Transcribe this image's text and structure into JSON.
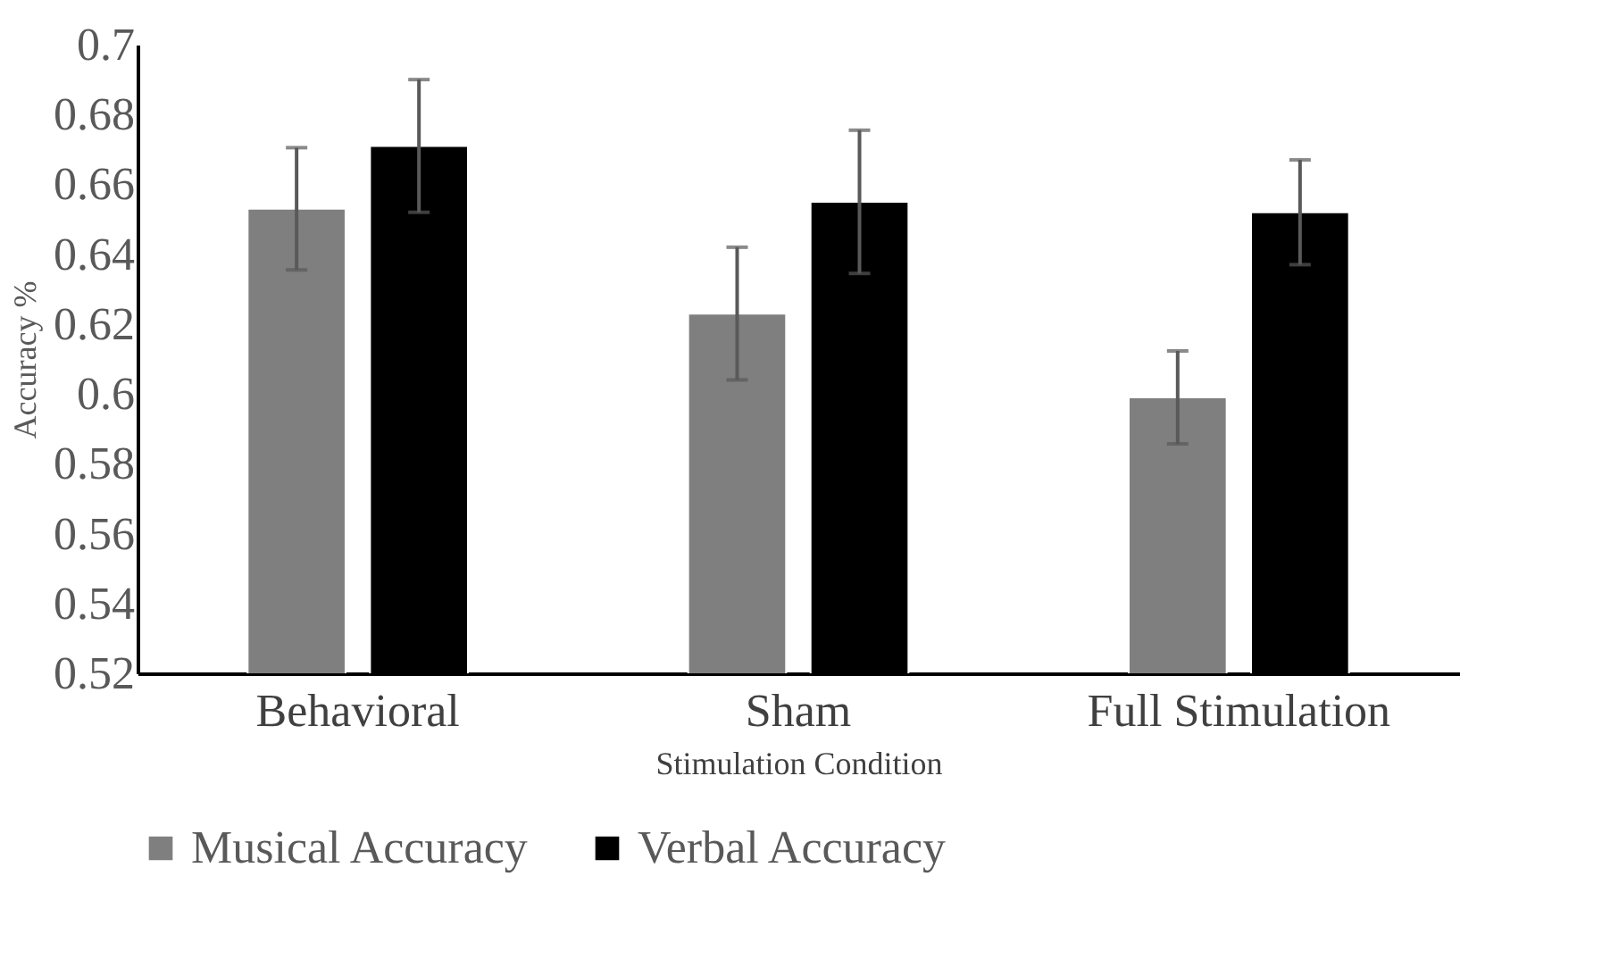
{
  "chart_data": {
    "type": "bar",
    "xlabel": "Stimulation Condition",
    "ylabel": "Accuracy %",
    "categories": [
      "Behavioral",
      "Sham",
      "Full Stimulation"
    ],
    "series": [
      {
        "name": "Musical Accuracy",
        "color": "#7f7f7f",
        "values": [
          0.653,
          0.623,
          0.599
        ],
        "errors": [
          0.0175,
          0.019,
          0.0133
        ]
      },
      {
        "name": "Verbal Accuracy",
        "color": "#000000",
        "values": [
          0.671,
          0.655,
          0.652
        ],
        "errors": [
          0.019,
          0.0205,
          0.015
        ]
      }
    ],
    "ylim": [
      0.52,
      0.7
    ],
    "yticks": [
      0.52,
      0.54,
      0.56,
      0.58,
      0.6,
      0.62,
      0.64,
      0.66,
      0.68,
      0.7
    ],
    "grid": false,
    "legend": "bottom"
  }
}
